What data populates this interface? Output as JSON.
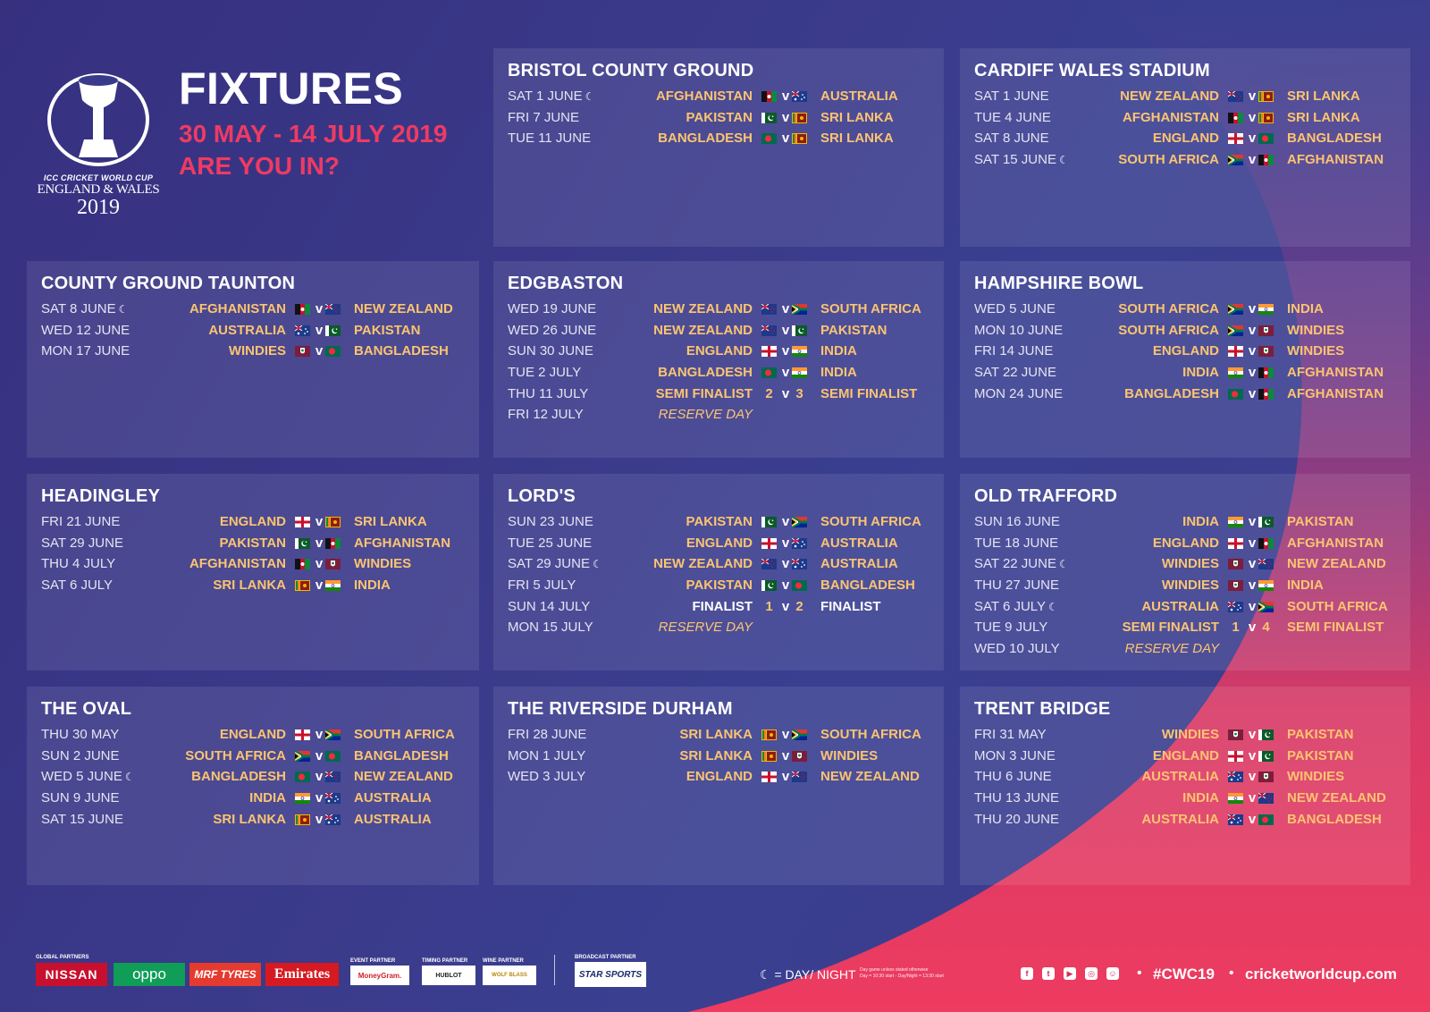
{
  "header": {
    "title": "FIXTURES",
    "dates": "30 MAY - 14 JULY 2019",
    "tagline": "ARE YOU IN?",
    "logo_line1": "ICC CRICKET WORLD CUP",
    "logo_line2": "ENGLAND & WALES",
    "logo_line3": "2019"
  },
  "colors": {
    "background": "#3a3a8c",
    "accent_pink": "#ee3b63",
    "team_gold": "#fbc471",
    "text_white": "#ffffff"
  },
  "flag_icons": {
    "AFGHANISTAN": "afghanistan-flag-icon",
    "AUSTRALIA": "australia-flag-icon",
    "PAKISTAN": "pakistan-flag-icon",
    "SRI LANKA": "sri-lanka-flag-icon",
    "BANGLADESH": "bangladesh-flag-icon",
    "NEW ZEALAND": "new-zealand-flag-icon",
    "ENGLAND": "england-flag-icon",
    "SOUTH AFRICA": "south-africa-flag-icon",
    "INDIA": "india-flag-icon",
    "WINDIES": "windies-flag-icon"
  },
  "venues": [
    {
      "name": "BRISTOL COUNTY GROUND",
      "matches": [
        {
          "date": "SAT 1 JUNE",
          "night": true,
          "home": "AFGHANISTAN",
          "away": "AUSTRALIA"
        },
        {
          "date": "FRI 7 JUNE",
          "night": false,
          "home": "PAKISTAN",
          "away": "SRI LANKA"
        },
        {
          "date": "TUE 11 JUNE",
          "night": false,
          "home": "BANGLADESH",
          "away": "SRI LANKA"
        }
      ]
    },
    {
      "name": "CARDIFF WALES STADIUM",
      "matches": [
        {
          "date": "SAT 1 JUNE",
          "night": false,
          "home": "NEW ZEALAND",
          "away": "SRI LANKA"
        },
        {
          "date": "TUE 4 JUNE",
          "night": false,
          "home": "AFGHANISTAN",
          "away": "SRI LANKA"
        },
        {
          "date": "SAT 8 JUNE",
          "night": false,
          "home": "ENGLAND",
          "away": "BANGLADESH"
        },
        {
          "date": "SAT 15 JUNE",
          "night": true,
          "home": "SOUTH AFRICA",
          "away": "AFGHANISTAN"
        }
      ]
    },
    {
      "name": "COUNTY GROUND TAUNTON",
      "matches": [
        {
          "date": "SAT 8 JUNE",
          "night": true,
          "home": "AFGHANISTAN",
          "away": "NEW ZEALAND"
        },
        {
          "date": "WED 12 JUNE",
          "night": false,
          "home": "AUSTRALIA",
          "away": "PAKISTAN"
        },
        {
          "date": "MON 17 JUNE",
          "night": false,
          "home": "WINDIES",
          "away": "BANGLADESH"
        }
      ]
    },
    {
      "name": "EDGBASTON",
      "matches": [
        {
          "date": "WED 19 JUNE",
          "night": false,
          "home": "NEW ZEALAND",
          "away": "SOUTH AFRICA"
        },
        {
          "date": "WED 26 JUNE",
          "night": false,
          "home": "NEW ZEALAND",
          "away": "PAKISTAN"
        },
        {
          "date": "SUN 30 JUNE",
          "night": false,
          "home": "ENGLAND",
          "away": "INDIA"
        },
        {
          "date": "TUE 2 JULY",
          "night": false,
          "home": "BANGLADESH",
          "away": "INDIA"
        },
        {
          "date": "THU 11 JULY",
          "night": false,
          "home": "SEMI FINALIST",
          "away": "SEMI FINALIST",
          "home_seed": "2",
          "away_seed": "3"
        },
        {
          "date": "FRI 12 JULY",
          "night": false,
          "reserve": "RESERVE DAY"
        }
      ]
    },
    {
      "name": "HAMPSHIRE BOWL",
      "matches": [
        {
          "date": "WED 5 JUNE",
          "night": false,
          "home": "SOUTH AFRICA",
          "away": "INDIA"
        },
        {
          "date": "MON 10 JUNE",
          "night": false,
          "home": "SOUTH AFRICA",
          "away": "WINDIES"
        },
        {
          "date": "FRI 14 JUNE",
          "night": false,
          "home": "ENGLAND",
          "away": "WINDIES"
        },
        {
          "date": "SAT 22 JUNE",
          "night": false,
          "home": "INDIA",
          "away": "AFGHANISTAN"
        },
        {
          "date": "MON 24 JUNE",
          "night": false,
          "home": "BANGLADESH",
          "away": "AFGHANISTAN"
        }
      ]
    },
    {
      "name": "HEADINGLEY",
      "matches": [
        {
          "date": "FRI 21 JUNE",
          "night": false,
          "home": "ENGLAND",
          "away": "SRI LANKA"
        },
        {
          "date": "SAT 29 JUNE",
          "night": false,
          "home": "PAKISTAN",
          "away": "AFGHANISTAN"
        },
        {
          "date": "THU 4 JULY",
          "night": false,
          "home": "AFGHANISTAN",
          "away": "WINDIES"
        },
        {
          "date": "SAT 6 JULY",
          "night": false,
          "home": "SRI LANKA",
          "away": "INDIA"
        }
      ]
    },
    {
      "name": "LORD'S",
      "matches": [
        {
          "date": "SUN 23 JUNE",
          "night": false,
          "home": "PAKISTAN",
          "away": "SOUTH AFRICA"
        },
        {
          "date": "TUE 25 JUNE",
          "night": false,
          "home": "ENGLAND",
          "away": "AUSTRALIA"
        },
        {
          "date": "SAT 29 JUNE",
          "night": true,
          "home": "NEW ZEALAND",
          "away": "AUSTRALIA"
        },
        {
          "date": "FRI 5 JULY",
          "night": false,
          "home": "PAKISTAN",
          "away": "BANGLADESH"
        },
        {
          "date": "SUN 14 JULY",
          "night": false,
          "home": "FINALIST",
          "away": "FINALIST",
          "home_seed": "1",
          "away_seed": "2",
          "final": true
        },
        {
          "date": "MON 15 JULY",
          "night": false,
          "reserve": "RESERVE DAY"
        }
      ]
    },
    {
      "name": "OLD TRAFFORD",
      "matches": [
        {
          "date": "SUN 16 JUNE",
          "night": false,
          "home": "INDIA",
          "away": "PAKISTAN"
        },
        {
          "date": "TUE 18 JUNE",
          "night": false,
          "home": "ENGLAND",
          "away": "AFGHANISTAN"
        },
        {
          "date": "SAT 22 JUNE",
          "night": true,
          "home": "WINDIES",
          "away": "NEW ZEALAND"
        },
        {
          "date": "THU 27 JUNE",
          "night": false,
          "home": "WINDIES",
          "away": "INDIA"
        },
        {
          "date": "SAT 6 JULY",
          "night": true,
          "home": "AUSTRALIA",
          "away": "SOUTH AFRICA"
        },
        {
          "date": "TUE 9 JULY",
          "night": false,
          "home": "SEMI FINALIST",
          "away": "SEMI FINALIST",
          "home_seed": "1",
          "away_seed": "4"
        },
        {
          "date": "WED 10 JULY",
          "night": false,
          "reserve": "RESERVE DAY"
        }
      ]
    },
    {
      "name": "THE OVAL",
      "matches": [
        {
          "date": "THU 30 MAY",
          "night": false,
          "home": "ENGLAND",
          "away": "SOUTH AFRICA"
        },
        {
          "date": "SUN 2 JUNE",
          "night": false,
          "home": "SOUTH AFRICA",
          "away": "BANGLADESH"
        },
        {
          "date": "WED 5 JUNE",
          "night": true,
          "home": "BANGLADESH",
          "away": "NEW ZEALAND"
        },
        {
          "date": "SUN 9 JUNE",
          "night": false,
          "home": "INDIA",
          "away": "AUSTRALIA"
        },
        {
          "date": "SAT 15 JUNE",
          "night": false,
          "home": "SRI LANKA",
          "away": "AUSTRALIA"
        }
      ]
    },
    {
      "name": "THE RIVERSIDE DURHAM",
      "matches": [
        {
          "date": "FRI 28 JUNE",
          "night": false,
          "home": "SRI LANKA",
          "away": "SOUTH AFRICA"
        },
        {
          "date": "MON 1 JULY",
          "night": false,
          "home": "SRI LANKA",
          "away": "WINDIES"
        },
        {
          "date": "WED 3 JULY",
          "night": false,
          "home": "ENGLAND",
          "away": "NEW ZEALAND"
        }
      ]
    },
    {
      "name": "TRENT BRIDGE",
      "matches": [
        {
          "date": "FRI 31 MAY",
          "night": false,
          "home": "WINDIES",
          "away": "PAKISTAN"
        },
        {
          "date": "MON 3 JUNE",
          "night": false,
          "home": "ENGLAND",
          "away": "PAKISTAN"
        },
        {
          "date": "THU 6 JUNE",
          "night": false,
          "home": "AUSTRALIA",
          "away": "WINDIES"
        },
        {
          "date": "THU 13 JUNE",
          "night": false,
          "home": "INDIA",
          "away": "NEW ZEALAND"
        },
        {
          "date": "THU 20 JUNE",
          "night": false,
          "home": "AUSTRALIA",
          "away": "BANGLADESH"
        }
      ]
    }
  ],
  "vs_label": "v",
  "footer": {
    "global_partners_label": "GLOBAL PARTNERS",
    "global_partners": [
      "NISSAN",
      "oppo",
      "MRF TYRES",
      "Emirates"
    ],
    "event_partner_label": "EVENT PARTNER",
    "event_partner": "MoneyGram.",
    "timing_partner_label": "TIMING PARTNER",
    "timing_partner": "HUBLOT",
    "wine_partner_label": "WINE PARTNER",
    "wine_partner": "WOLF BLASS",
    "broadcast_partner_label": "BROADCAST PARTNER",
    "broadcast_partner": "STAR SPORTS",
    "day_night_legend": "= DAY/ NIGHT",
    "day_night_note_1": "Day game unless stated otherwise",
    "day_night_note_2": "Day = 10:30 start - Day/Night = 13:30 start",
    "social_icons": [
      "facebook-icon",
      "twitter-icon",
      "youtube-icon",
      "instagram-icon",
      "snapchat-icon"
    ],
    "hashtag": "#CWC19",
    "website": "cricketworldcup.com"
  }
}
